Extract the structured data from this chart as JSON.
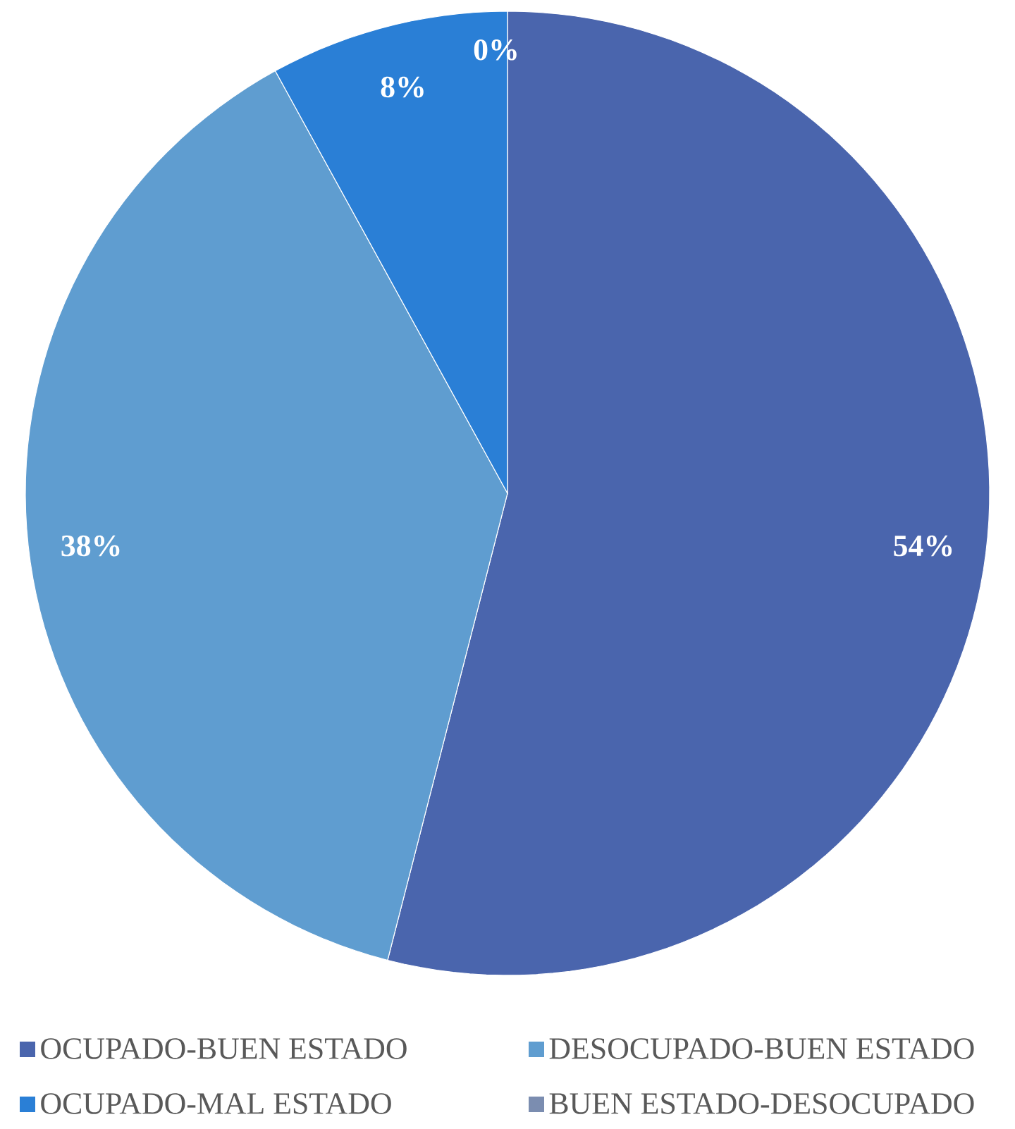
{
  "chart_data": {
    "type": "pie",
    "categories": [
      "OCUPADO-BUEN ESTADO",
      "DESOCUPADO-BUEN ESTADO",
      "OCUPADO-MAL ESTADO",
      "BUEN ESTADO-DESOCUPADO"
    ],
    "values": [
      54,
      38,
      8,
      0
    ],
    "value_labels": [
      "54%",
      "38%",
      "8%",
      "0%"
    ],
    "colors": [
      "#4a65ad",
      "#5f9dd0",
      "#2a7fd6",
      "#7b8db0"
    ],
    "legend": "bottom"
  }
}
